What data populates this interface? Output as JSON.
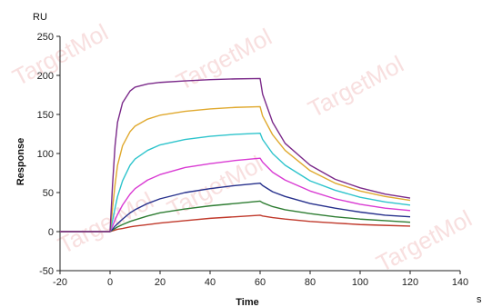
{
  "chart_data": {
    "type": "line",
    "title": "",
    "xlabel": "Time",
    "ylabel": "Response",
    "y_unit": "RU",
    "x_unit": "s",
    "xlim": [
      -20,
      140
    ],
    "ylim": [
      -50,
      250
    ],
    "x_ticks": [
      -20,
      0,
      20,
      40,
      60,
      80,
      100,
      120,
      140
    ],
    "y_ticks": [
      -50,
      0,
      50,
      100,
      150,
      200,
      250
    ],
    "grid": false,
    "legend": "none",
    "watermark": "TargetMol",
    "series": [
      {
        "color": "#7b2a8a",
        "x": [
          -20,
          0,
          1,
          2,
          3,
          5,
          8,
          10,
          15,
          20,
          30,
          40,
          50,
          60,
          61,
          65,
          70,
          80,
          90,
          100,
          110,
          120
        ],
        "values": [
          0,
          0,
          60,
          110,
          140,
          165,
          180,
          185,
          189,
          191,
          193,
          194.5,
          195.5,
          196,
          176,
          140,
          113,
          85,
          67,
          56,
          48,
          43
        ]
      },
      {
        "color": "#e0a92e",
        "x": [
          -20,
          0,
          1,
          2,
          3,
          5,
          8,
          10,
          15,
          20,
          30,
          40,
          50,
          60,
          61,
          65,
          70,
          80,
          90,
          100,
          110,
          120
        ],
        "values": [
          0,
          0,
          30,
          60,
          85,
          110,
          128,
          135,
          144,
          149,
          154,
          157,
          159,
          160,
          148,
          124,
          104,
          78,
          62,
          52,
          45,
          40
        ]
      },
      {
        "color": "#2ec4cc",
        "x": [
          -20,
          0,
          1,
          2,
          3,
          5,
          8,
          10,
          15,
          20,
          30,
          40,
          50,
          60,
          61,
          65,
          70,
          80,
          90,
          100,
          110,
          120
        ],
        "values": [
          0,
          0,
          14,
          30,
          45,
          65,
          85,
          93,
          104,
          111,
          118,
          122,
          124.5,
          126,
          118,
          100,
          85,
          65,
          53,
          44,
          38,
          34
        ]
      },
      {
        "color": "#d93bd3",
        "x": [
          -20,
          0,
          1,
          2,
          3,
          5,
          8,
          10,
          15,
          20,
          30,
          40,
          50,
          60,
          61,
          65,
          70,
          80,
          90,
          100,
          110,
          120
        ],
        "values": [
          0,
          0,
          7,
          15,
          22,
          34,
          48,
          55,
          66,
          73,
          82,
          87,
          91,
          94,
          89,
          76,
          66,
          52,
          42,
          35,
          30,
          27
        ]
      },
      {
        "color": "#26308c",
        "x": [
          -20,
          0,
          1,
          2,
          3,
          5,
          8,
          10,
          15,
          20,
          30,
          40,
          50,
          60,
          61,
          65,
          70,
          80,
          90,
          100,
          110,
          120
        ],
        "values": [
          0,
          0,
          3,
          7,
          10,
          16,
          24,
          28,
          36,
          42,
          50,
          55,
          59,
          62,
          59,
          51,
          45,
          36,
          30,
          25,
          21,
          19
        ]
      },
      {
        "color": "#2e7d32",
        "x": [
          -20,
          0,
          1,
          2,
          3,
          5,
          8,
          10,
          15,
          20,
          30,
          40,
          50,
          60,
          61,
          65,
          70,
          80,
          90,
          100,
          110,
          120
        ],
        "values": [
          0,
          0,
          2,
          4,
          6,
          9,
          13,
          15,
          20,
          24,
          29,
          33,
          36,
          39,
          37,
          32,
          28,
          23,
          19,
          16,
          14,
          12
        ]
      },
      {
        "color": "#c0392b",
        "x": [
          -20,
          0,
          1,
          2,
          3,
          5,
          8,
          10,
          15,
          20,
          30,
          40,
          50,
          60,
          61,
          65,
          70,
          80,
          90,
          100,
          110,
          120
        ],
        "values": [
          0,
          0,
          1,
          2,
          3,
          4,
          6,
          7,
          9,
          11,
          14,
          17,
          19,
          21,
          20,
          18,
          16,
          13,
          11,
          9,
          8,
          7
        ]
      }
    ]
  }
}
